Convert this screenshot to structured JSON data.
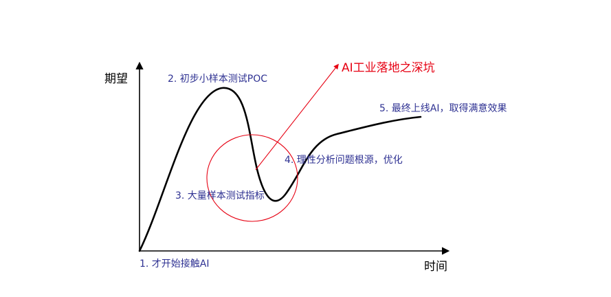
{
  "axes": {
    "y_label": "期望",
    "x_label": "时间"
  },
  "stages": [
    {
      "label": "1. 才开始接触AI"
    },
    {
      "label": "2. 初步小样本测试POC"
    },
    {
      "label": "3. 大量样本测试指标"
    },
    {
      "label": "4. 理性分析问题根源，优化"
    },
    {
      "label": "5. 最终上线AI，取得满意效果"
    }
  ],
  "callout": {
    "label": "AI工业落地之深坑"
  },
  "colors": {
    "axis": "#000000",
    "curve": "#000000",
    "stage_text": "#2e3192",
    "callout": "#e60012"
  }
}
